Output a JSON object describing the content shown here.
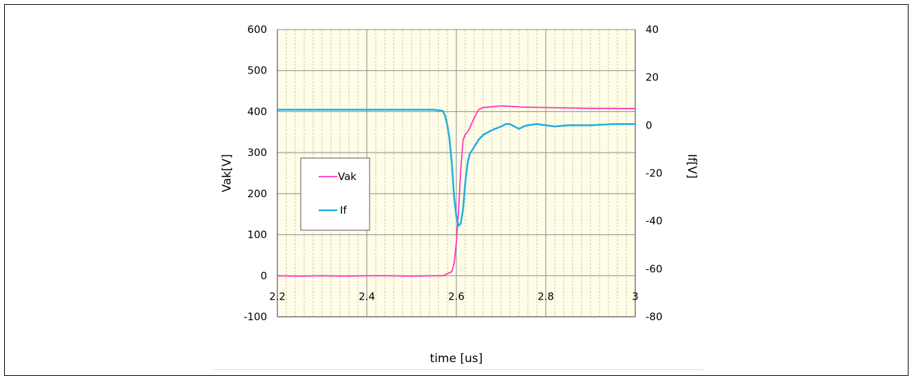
{
  "chart_data": {
    "type": "line",
    "title": "",
    "xlabel": "time [us]",
    "ylabel_left": "Vak[V]",
    "ylabel_right": "If[V]",
    "xlim": [
      2.2,
      3.0
    ],
    "ylim_left": [
      -100,
      600
    ],
    "ylim_right": [
      -80,
      40
    ],
    "x_ticks": [
      2.2,
      2.4,
      2.6,
      2.8,
      3.0
    ],
    "x_tick_labels": [
      "2.2",
      "2.4",
      "2.6",
      "2.8",
      "3"
    ],
    "y_left_ticks": [
      -100,
      0,
      100,
      200,
      300,
      400,
      500,
      600
    ],
    "y_left_tick_labels": [
      "-100",
      "0",
      "100",
      "200",
      "300",
      "400",
      "500",
      "600"
    ],
    "y_right_ticks": [
      -80,
      -60,
      -40,
      -20,
      0,
      20,
      40
    ],
    "y_right_tick_labels": [
      "-80",
      "-60",
      "-40",
      "-20",
      "0",
      "20",
      "40"
    ],
    "grid": true,
    "legend_position": "left",
    "background_color": "#fffde8",
    "grid_color": "#c9c9a8",
    "series": [
      {
        "name": "Vak",
        "axis": "left",
        "color": "#ff33bb",
        "x": [
          2.2,
          2.25,
          2.3,
          2.35,
          2.4,
          2.45,
          2.5,
          2.55,
          2.57,
          2.58,
          2.59,
          2.595,
          2.6,
          2.605,
          2.61,
          2.615,
          2.62,
          2.625,
          2.63,
          2.64,
          2.65,
          2.66,
          2.68,
          2.7,
          2.72,
          2.75,
          2.8,
          2.85,
          2.9,
          2.95,
          3.0
        ],
        "values": [
          0,
          -1,
          0,
          -1,
          0,
          0,
          -1,
          0,
          0,
          5,
          10,
          30,
          80,
          160,
          260,
          330,
          345,
          350,
          360,
          385,
          405,
          410,
          412,
          414,
          413,
          411,
          410,
          409,
          408,
          408,
          407
        ]
      },
      {
        "name": "If",
        "axis": "right",
        "color": "#22aee0",
        "x": [
          2.2,
          2.25,
          2.3,
          2.35,
          2.4,
          2.45,
          2.5,
          2.55,
          2.57,
          2.575,
          2.58,
          2.585,
          2.59,
          2.595,
          2.6,
          2.605,
          2.61,
          2.615,
          2.62,
          2.625,
          2.63,
          2.64,
          2.65,
          2.66,
          2.68,
          2.7,
          2.71,
          2.72,
          2.73,
          2.74,
          2.75,
          2.76,
          2.78,
          2.8,
          2.82,
          2.85,
          2.9,
          2.95,
          3.0
        ],
        "values": [
          6.5,
          6.5,
          6.5,
          6.5,
          6.5,
          6.5,
          6.5,
          6.5,
          6,
          4,
          0,
          -6,
          -16,
          -30,
          -38,
          -42,
          -41,
          -35,
          -24,
          -16,
          -12,
          -9,
          -6,
          -4,
          -2,
          -0.5,
          0.5,
          0.5,
          -0.5,
          -1.5,
          -0.5,
          0,
          0.5,
          0,
          -0.5,
          0,
          0,
          0.5,
          0.5
        ]
      }
    ]
  }
}
